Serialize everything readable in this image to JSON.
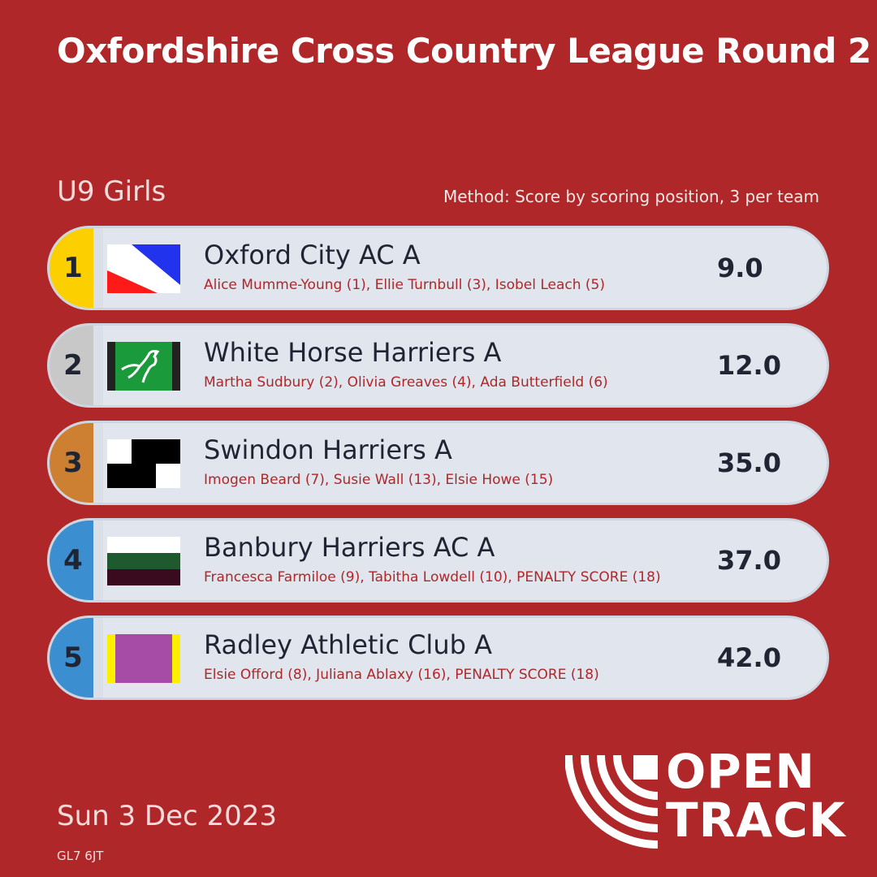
{
  "title": "Oxfordshire Cross Country League Round 2",
  "category": "U9 Girls",
  "method": "Method: Score by scoring position, 3 per team",
  "rows": [
    {
      "rank": "1",
      "rank_color": "#fccf00",
      "team": "Oxford City AC A",
      "members": "Alice Mumme-Young (1), Ellie Turnbull (3), Isobel Leach (5)",
      "score": "9.0",
      "flag_icon": "oxford-city-flag-icon"
    },
    {
      "rank": "2",
      "rank_color": "#c8c8c8",
      "team": "White Horse Harriers A",
      "members": "Martha Sudbury (2), Olivia Greaves (4), Ada Butterfield (6)",
      "score": "12.0",
      "flag_icon": "white-horse-flag-icon"
    },
    {
      "rank": "3",
      "rank_color": "#cd7f32",
      "team": "Swindon Harriers A",
      "members": "Imogen Beard (7), Susie Wall (13), Elsie Howe (15)",
      "score": "35.0",
      "flag_icon": "swindon-flag-icon"
    },
    {
      "rank": "4",
      "rank_color": "#3b8fd0",
      "team": "Banbury Harriers AC A",
      "members": "Francesca Farmiloe (9), Tabitha Lowdell (10), PENALTY SCORE (18)",
      "score": "37.0",
      "flag_icon": "banbury-flag-icon"
    },
    {
      "rank": "5",
      "rank_color": "#3b8fd0",
      "team": "Radley Athletic Club A",
      "members": "Elsie Offord (8), Juliana Ablaxy (16), PENALTY SCORE (18)",
      "score": "42.0",
      "flag_icon": "radley-flag-icon"
    }
  ],
  "date": "Sun 3 Dec 2023",
  "postcode": "GL7 6JT",
  "logo": {
    "line1": "OPEN",
    "line2": "TRACK"
  },
  "colors": {
    "background": "#b0272a",
    "card": "#e0e5ee",
    "accent_text": "#b0272a"
  }
}
